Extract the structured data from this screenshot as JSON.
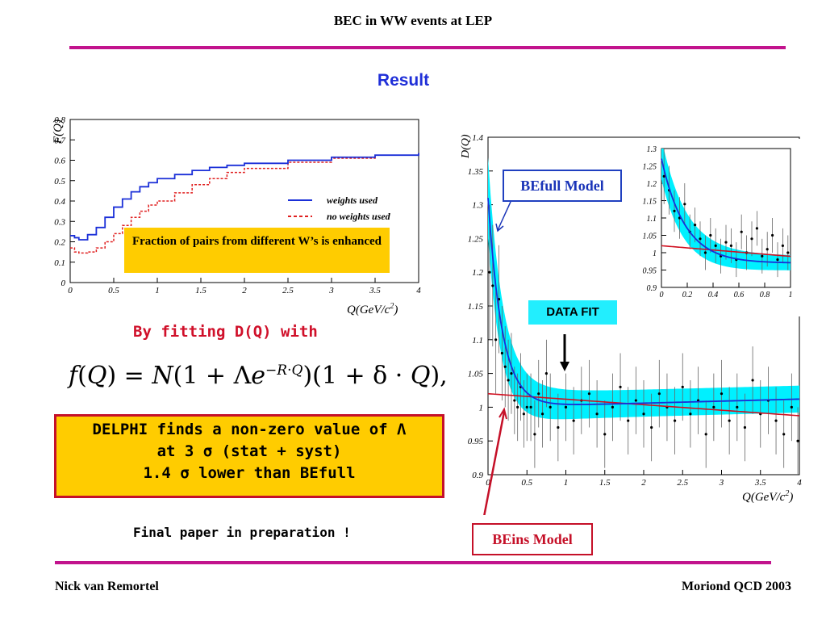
{
  "header": {
    "title": "BEC in WW events at LEP"
  },
  "slide": {
    "title": "Result",
    "fitting_text": "By fitting D(Q) with",
    "formula": "f(Q) = N(1 + Λe^(−R·Q))(1 + δ · Q),",
    "result_lines": [
      "DELPHI finds a non-zero value of Λ",
      "at 3 σ (stat + syst)",
      "1.4 σ lower than BEfull"
    ],
    "final_note": "Final paper in preparation !",
    "fraction_note": "Fraction of pairs from different W’s is enhanced"
  },
  "callouts": {
    "befull": "BEfull Model",
    "beins": "BEins Model",
    "data_fit": "DATA FIT"
  },
  "footer": {
    "left": "Nick van Remortel",
    "right": "Moriond QCD 2003"
  },
  "colors": {
    "accent_rule": "#c2138d",
    "title_blue": "#1f2fd8",
    "highlight_yellow": "#ffcc00",
    "band_cyan": "#00f0ff",
    "curve_red": "#d01020"
  },
  "chart_data": [
    {
      "type": "line",
      "title": "",
      "xlabel": "Q(GeV/c2)",
      "ylabel": "F(Q)",
      "xlim": [
        0,
        4
      ],
      "ylim": [
        0,
        0.8
      ],
      "x_ticks": [
        "0",
        "0.5",
        "1",
        "1.5",
        "2",
        "2.5",
        "3",
        "3.5",
        "4"
      ],
      "y_ticks": [
        "0",
        "0.1",
        "0.2",
        "0.3",
        "0.4",
        "0.5",
        "0.6",
        "0.7",
        "0.8"
      ],
      "legend": "right",
      "series": [
        {
          "name": "weights used",
          "color": "#1a2fd8",
          "x": [
            0,
            0.05,
            0.1,
            0.2,
            0.3,
            0.4,
            0.5,
            0.6,
            0.7,
            0.8,
            0.9,
            1.0,
            1.2,
            1.4,
            1.6,
            1.8,
            2.0,
            2.5,
            3.0,
            3.5,
            4.0
          ],
          "values": [
            0.23,
            0.22,
            0.21,
            0.235,
            0.27,
            0.32,
            0.37,
            0.41,
            0.445,
            0.47,
            0.49,
            0.51,
            0.53,
            0.55,
            0.565,
            0.575,
            0.585,
            0.6,
            0.615,
            0.625,
            0.635
          ]
        },
        {
          "name": "no weights used",
          "color": "#e02020",
          "x": [
            0,
            0.05,
            0.1,
            0.2,
            0.3,
            0.4,
            0.5,
            0.6,
            0.7,
            0.8,
            0.9,
            1.0,
            1.2,
            1.4,
            1.6,
            1.8,
            2.0,
            2.5,
            3.0,
            3.5,
            4.0
          ],
          "values": [
            0.17,
            0.15,
            0.145,
            0.15,
            0.17,
            0.2,
            0.24,
            0.28,
            0.32,
            0.35,
            0.38,
            0.4,
            0.44,
            0.48,
            0.51,
            0.54,
            0.56,
            0.59,
            0.61,
            0.625,
            0.635
          ]
        }
      ]
    },
    {
      "type": "scatter",
      "title": "",
      "xlabel": "Q(GeV/c2)",
      "ylabel": "D(Q)",
      "xlim": [
        0,
        4
      ],
      "ylim": [
        0.9,
        1.4
      ],
      "x_ticks": [
        "0",
        "0.5",
        "1",
        "1.5",
        "2",
        "2.5",
        "3",
        "3.5",
        "4"
      ],
      "y_ticks": [
        "0.9",
        "0.95",
        "1",
        "1.05",
        "1.1",
        "1.15",
        "1.2",
        "1.25",
        "1.3",
        "1.35",
        "1.4"
      ],
      "points": {
        "x": [
          0.02,
          0.06,
          0.1,
          0.14,
          0.18,
          0.22,
          0.26,
          0.3,
          0.34,
          0.38,
          0.42,
          0.46,
          0.5,
          0.55,
          0.6,
          0.65,
          0.7,
          0.75,
          0.8,
          0.9,
          1.0,
          1.1,
          1.2,
          1.3,
          1.4,
          1.5,
          1.6,
          1.7,
          1.8,
          1.9,
          2.0,
          2.1,
          2.2,
          2.3,
          2.4,
          2.5,
          2.6,
          2.7,
          2.8,
          2.9,
          3.0,
          3.1,
          3.2,
          3.3,
          3.4,
          3.5,
          3.6,
          3.7,
          3.8,
          3.9,
          3.98
        ],
        "y": [
          1.2,
          1.18,
          1.1,
          1.16,
          1.08,
          1.06,
          1.04,
          1.05,
          1.01,
          1.0,
          1.03,
          0.99,
          1.0,
          1.0,
          0.96,
          1.02,
          0.99,
          1.05,
          1.0,
          0.97,
          1.0,
          0.98,
          1.01,
          1.02,
          0.99,
          0.96,
          1.0,
          1.03,
          0.98,
          1.01,
          0.99,
          0.97,
          1.02,
          1.0,
          0.98,
          1.03,
          0.99,
          1.01,
          0.96,
          1.0,
          1.02,
          0.98,
          1.0,
          0.97,
          1.04,
          0.99,
          1.01,
          0.98,
          0.96,
          1.0,
          0.95
        ],
        "err": [
          0.1,
          0.09,
          0.08,
          0.08,
          0.07,
          0.06,
          0.06,
          0.06,
          0.05,
          0.05,
          0.05,
          0.05,
          0.05,
          0.05,
          0.05,
          0.05,
          0.05,
          0.05,
          0.05,
          0.05,
          0.05,
          0.05,
          0.05,
          0.05,
          0.05,
          0.05,
          0.05,
          0.05,
          0.05,
          0.05,
          0.05,
          0.05,
          0.05,
          0.05,
          0.05,
          0.05,
          0.05,
          0.05,
          0.05,
          0.05,
          0.05,
          0.05,
          0.05,
          0.05,
          0.05,
          0.05,
          0.05,
          0.05,
          0.05,
          0.05,
          0.05
        ]
      },
      "curves": {
        "befull": {
          "N": 1.0,
          "lambda": 0.31,
          "R": 5.5,
          "delta": 0.003,
          "color": "#1a2fd8"
        },
        "beins": {
          "N": 1.02,
          "lambda": 0.0,
          "R": 0.0,
          "delta": -0.008,
          "color": "#d01020"
        },
        "band_halfwidth": 0.02
      }
    },
    {
      "type": "scatter",
      "title": "",
      "xlabel": "",
      "ylabel": "",
      "xlim": [
        0,
        1
      ],
      "ylim": [
        0.9,
        1.3
      ],
      "x_ticks": [
        "0",
        "0.2",
        "0.4",
        "0.6",
        "0.8",
        "1"
      ],
      "y_ticks": [
        "0.9",
        "0.95",
        "1",
        "1.05",
        "1.1",
        "1.15",
        "1.2",
        "1.25",
        "1.3"
      ],
      "points": {
        "x": [
          0.02,
          0.06,
          0.1,
          0.14,
          0.18,
          0.22,
          0.26,
          0.3,
          0.34,
          0.38,
          0.42,
          0.46,
          0.5,
          0.54,
          0.58,
          0.62,
          0.66,
          0.7,
          0.74,
          0.78,
          0.82,
          0.86,
          0.9,
          0.94,
          0.98
        ],
        "y": [
          1.22,
          1.18,
          1.12,
          1.1,
          1.14,
          1.06,
          1.08,
          1.04,
          1.0,
          1.05,
          1.02,
          0.99,
          1.03,
          1.02,
          0.98,
          1.06,
          1.0,
          1.04,
          1.07,
          0.99,
          1.01,
          1.05,
          0.98,
          1.02,
          1.0
        ],
        "err": [
          0.08,
          0.07,
          0.06,
          0.06,
          0.06,
          0.05,
          0.05,
          0.05,
          0.05,
          0.05,
          0.05,
          0.05,
          0.05,
          0.05,
          0.05,
          0.05,
          0.05,
          0.05,
          0.05,
          0.05,
          0.05,
          0.05,
          0.05,
          0.05,
          0.05
        ]
      },
      "curves": {
        "befull": {
          "N": 0.97,
          "lambda": 0.31,
          "R": 5.5,
          "delta": 0.0,
          "color": "#1a2fd8"
        },
        "beins": {
          "N": 1.02,
          "lambda": 0.0,
          "R": 0.0,
          "delta": -0.03,
          "color": "#d01020"
        },
        "band_halfwidth": 0.02
      }
    }
  ]
}
